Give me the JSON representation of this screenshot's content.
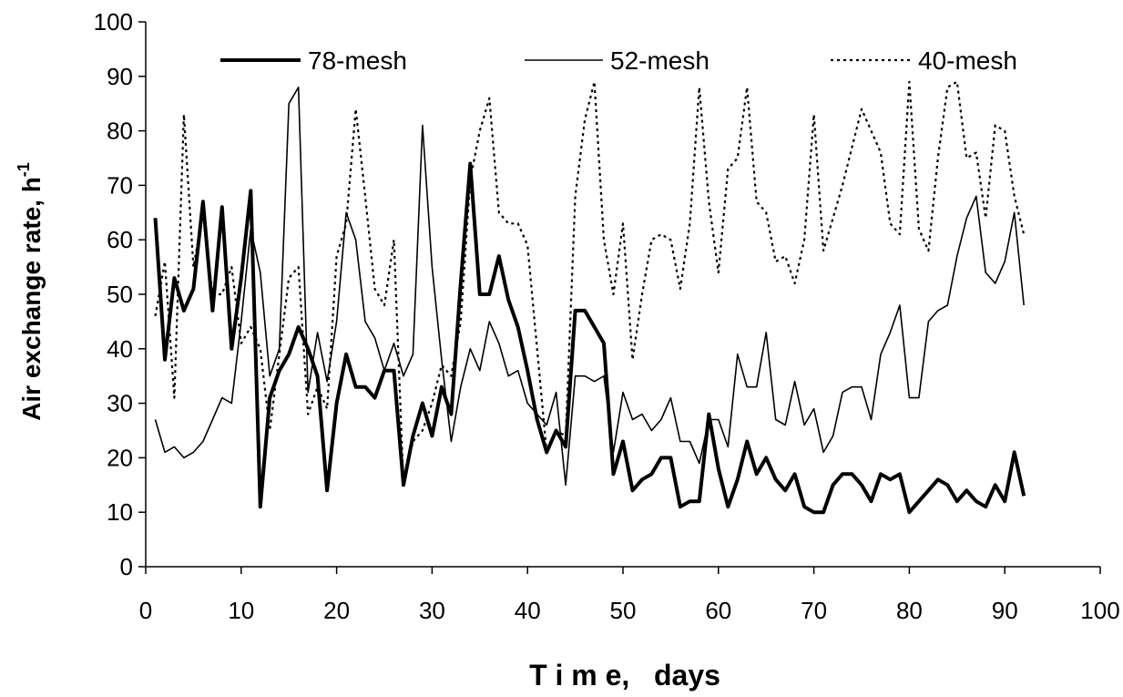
{
  "chart_data": {
    "type": "line",
    "xlabel": "T i m e,   days",
    "ylabel": "Air exchange rate, h",
    "ylabel_superscript": "-1",
    "xlim": [
      0,
      100
    ],
    "ylim": [
      0,
      100
    ],
    "xticks": [
      0,
      10,
      20,
      30,
      40,
      50,
      60,
      70,
      80,
      90,
      100
    ],
    "yticks": [
      0,
      10,
      20,
      30,
      40,
      50,
      60,
      70,
      80,
      90,
      100
    ],
    "grid": false,
    "legend_position": "top",
    "series": [
      {
        "name": "78-mesh",
        "style": "thick-solid",
        "color": "#000000",
        "x": [
          1,
          2,
          3,
          4,
          5,
          6,
          7,
          8,
          9,
          10,
          11,
          12,
          13,
          14,
          15,
          16,
          17,
          18,
          19,
          20,
          21,
          22,
          23,
          24,
          25,
          26,
          27,
          28,
          29,
          30,
          31,
          32,
          33,
          34,
          35,
          36,
          37,
          38,
          39,
          40,
          41,
          42,
          43,
          44,
          45,
          46,
          47,
          48,
          49,
          50,
          51,
          52,
          53,
          54,
          55,
          56,
          57,
          58,
          59,
          60,
          61,
          62,
          63,
          64,
          65,
          66,
          67,
          68,
          69,
          70,
          71,
          72,
          73,
          74,
          75,
          76,
          77,
          78,
          79,
          80,
          81,
          82,
          83,
          84,
          85,
          86,
          87,
          88,
          89,
          90,
          91,
          92
        ],
        "y": [
          64,
          38,
          53,
          47,
          51,
          67,
          47,
          66,
          40,
          53,
          69,
          11,
          31,
          36,
          39,
          44,
          40,
          35,
          14,
          30,
          39,
          33,
          33,
          31,
          36,
          36,
          15,
          24,
          30,
          24,
          33,
          28,
          52,
          74,
          50,
          50,
          57,
          49,
          44,
          36,
          27,
          21,
          25,
          22,
          47,
          47,
          44,
          41,
          17,
          23,
          14,
          16,
          17,
          20,
          20,
          11,
          12,
          12,
          28,
          18,
          11,
          16,
          23,
          17,
          20,
          16,
          14,
          17,
          11,
          10,
          10,
          15,
          17,
          17,
          15,
          12,
          17,
          16,
          17,
          10,
          12,
          14,
          16,
          15,
          12,
          14,
          12,
          11,
          15,
          12,
          21,
          13
        ]
      },
      {
        "name": "52-mesh",
        "style": "thin-solid",
        "color": "#000000",
        "x": [
          1,
          2,
          3,
          4,
          5,
          6,
          7,
          8,
          9,
          10,
          11,
          12,
          13,
          14,
          15,
          16,
          17,
          18,
          19,
          20,
          21,
          22,
          23,
          24,
          25,
          26,
          27,
          28,
          29,
          30,
          31,
          32,
          33,
          34,
          35,
          36,
          37,
          38,
          39,
          40,
          41,
          42,
          43,
          44,
          45,
          46,
          47,
          48,
          49,
          50,
          51,
          52,
          53,
          54,
          55,
          56,
          57,
          58,
          59,
          60,
          61,
          62,
          63,
          64,
          65,
          66,
          67,
          68,
          69,
          70,
          71,
          72,
          73,
          74,
          75,
          76,
          77,
          78,
          79,
          80,
          81,
          82,
          83,
          84,
          85,
          86,
          87,
          88,
          89,
          90,
          91,
          92
        ],
        "y": [
          27,
          21,
          22,
          20,
          21,
          23,
          27,
          31,
          30,
          45,
          62,
          54,
          35,
          40,
          85,
          88,
          32,
          43,
          34,
          45,
          65,
          60,
          45,
          42,
          36,
          41,
          35,
          39,
          81,
          55,
          38,
          23,
          33,
          40,
          36,
          45,
          41,
          35,
          36,
          30,
          28,
          26,
          32,
          15,
          35,
          35,
          34,
          35,
          21,
          32,
          27,
          28,
          25,
          27,
          31,
          23,
          23,
          19,
          27,
          27,
          22,
          39,
          33,
          33,
          43,
          27,
          26,
          34,
          26,
          29,
          21,
          24,
          32,
          33,
          33,
          27,
          39,
          43,
          48,
          31,
          31,
          45,
          47,
          48,
          57,
          64,
          68,
          54,
          52,
          56,
          65,
          48
        ]
      },
      {
        "name": "40-mesh",
        "style": "dotted",
        "color": "#000000",
        "x": [
          1,
          2,
          3,
          4,
          5,
          6,
          7,
          8,
          9,
          10,
          11,
          12,
          13,
          14,
          15,
          16,
          17,
          18,
          19,
          20,
          21,
          22,
          23,
          24,
          25,
          26,
          27,
          28,
          29,
          30,
          31,
          32,
          33,
          34,
          35,
          36,
          37,
          38,
          39,
          40,
          41,
          42,
          43,
          44,
          45,
          46,
          47,
          48,
          49,
          50,
          51,
          52,
          53,
          54,
          55,
          56,
          57,
          58,
          59,
          60,
          61,
          62,
          63,
          64,
          65,
          66,
          67,
          68,
          69,
          70,
          71,
          72,
          73,
          74,
          75,
          76,
          77,
          78,
          79,
          80,
          81,
          82,
          83,
          84,
          85,
          86,
          87,
          88,
          89,
          90,
          91,
          92
        ],
        "y": [
          46,
          56,
          31,
          83,
          55,
          65,
          50,
          50,
          55,
          41,
          44,
          40,
          25,
          39,
          53,
          55,
          28,
          33,
          29,
          57,
          63,
          84,
          68,
          51,
          48,
          60,
          15,
          23,
          25,
          30,
          37,
          35,
          45,
          71,
          80,
          86,
          65,
          63,
          63,
          59,
          40,
          21,
          25,
          24,
          68,
          82,
          89,
          60,
          50,
          63,
          38,
          50,
          60,
          61,
          60,
          51,
          63,
          88,
          67,
          54,
          73,
          75,
          88,
          67,
          65,
          56,
          57,
          52,
          60,
          83,
          58,
          64,
          70,
          77,
          84,
          80,
          76,
          63,
          61,
          89,
          62,
          58,
          75,
          88,
          89,
          75,
          76,
          64,
          81,
          80,
          68,
          61
        ]
      }
    ]
  }
}
